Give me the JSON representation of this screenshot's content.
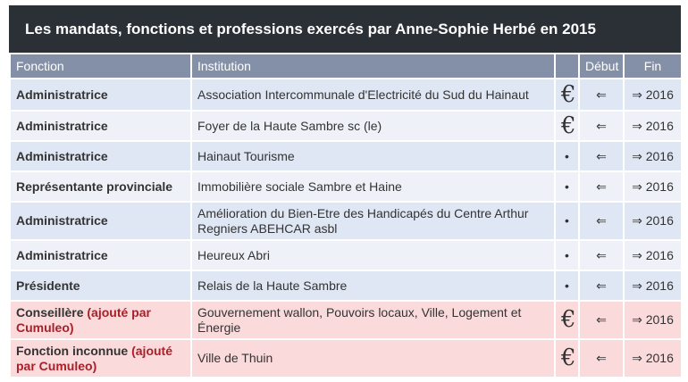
{
  "title": "Les mandats, fonctions et professions exercés par Anne-Sophie Herbé en 2015",
  "headers": {
    "fonction": "Fonction",
    "institution": "Institution",
    "icon": "",
    "debut": "Début",
    "fin": "Fin"
  },
  "rows": [
    {
      "fonction": "Administratrice",
      "added": "",
      "institution": "Association Intercommunale d'Electricité du Sud du Hainaut",
      "icon": "€",
      "debut": "⇐",
      "fin": "⇒ 2016",
      "h": 38
    },
    {
      "fonction": "Administratrice",
      "added": "",
      "institution": "Foyer de la Haute Sambre sc (le)",
      "icon": "€",
      "debut": "⇐",
      "fin": "⇒ 2016",
      "h": 36
    },
    {
      "fonction": "Administratrice",
      "added": "",
      "institution": "Hainaut Tourisme",
      "icon": "•",
      "debut": "⇐",
      "fin": "⇒ 2016",
      "h": 30
    },
    {
      "fonction": "Représentante provinciale",
      "added": "",
      "institution": "Immobilière sociale Sambre et Haine",
      "icon": "•",
      "debut": "⇐",
      "fin": "⇒ 2016",
      "h": 31
    },
    {
      "fonction": "Administratrice",
      "added": "",
      "institution": "Amélioration du Bien-Etre des Handicapés du Centre Arthur Regniers ABEHCAR asbl",
      "icon": "•",
      "debut": "⇐",
      "fin": "⇒ 2016",
      "h": 45
    },
    {
      "fonction": "Administratrice",
      "added": "",
      "institution": "Heureux Abri",
      "icon": "•",
      "debut": "⇐",
      "fin": "⇒ 2016",
      "h": 31
    },
    {
      "fonction": "Présidente",
      "added": "",
      "institution": "Relais de la Haute Sambre",
      "icon": "•",
      "debut": "⇐",
      "fin": "⇒ 2016",
      "h": 31
    },
    {
      "fonction": "Conseillère",
      "added": " (ajouté par Cumuleo)",
      "institution": "Gouvernement wallon, Pouvoirs locaux, Ville, Logement et Énergie",
      "icon": "€",
      "debut": "⇐",
      "fin": "⇒ 2016",
      "h": 45
    },
    {
      "fonction": "Fonction inconnue",
      "added": " (ajouté par Cumuleo)",
      "institution": "Ville de Thuin",
      "icon": "€",
      "debut": "⇐",
      "fin": "⇒ 2016",
      "h": 45
    }
  ]
}
